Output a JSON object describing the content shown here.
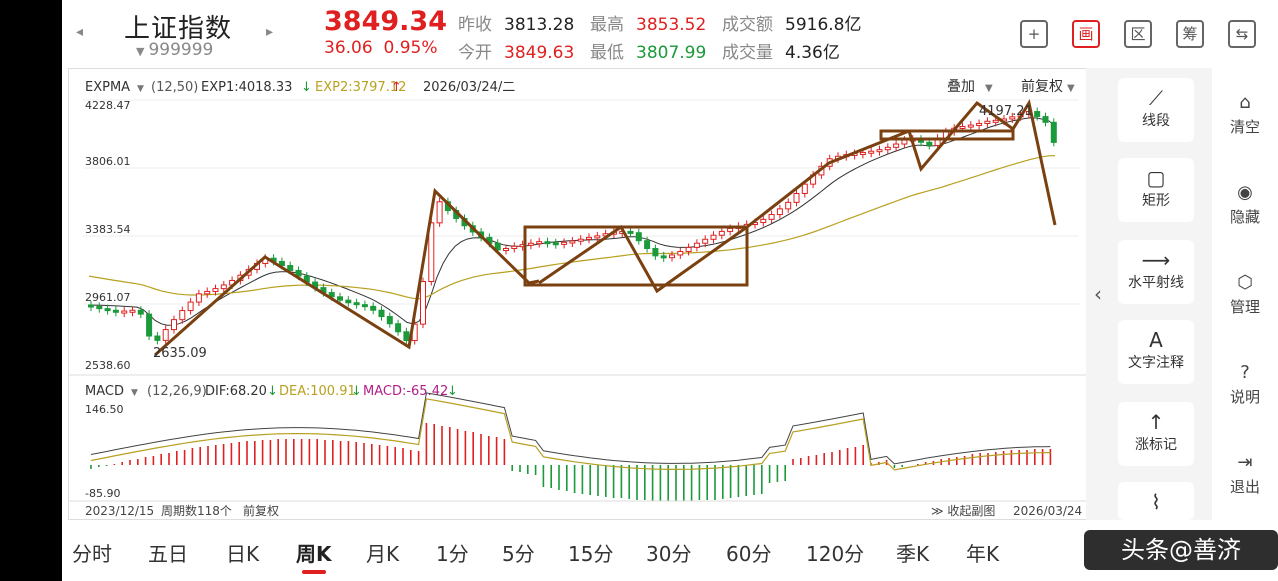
{
  "header": {
    "name": "上证指数",
    "code": "999999",
    "price": "3849.34",
    "change": "36.06",
    "change_pct": "0.95%",
    "quotes": {
      "prev_close_label": "昨收",
      "prev_close": "3813.28",
      "open_label": "今开",
      "open": "3849.63",
      "high_label": "最高",
      "high": "3853.52",
      "low_label": "最低",
      "low": "3807.99",
      "amount_label": "成交额",
      "amount": "5916.8亿",
      "volume_label": "成交量",
      "volume": "4.36亿"
    },
    "tools": [
      {
        "name": "add",
        "glyph": "+"
      },
      {
        "name": "draw",
        "glyph": "画"
      },
      {
        "name": "zone",
        "glyph": "区"
      },
      {
        "name": "chip",
        "glyph": "筹"
      },
      {
        "name": "device",
        "glyph": "⇆"
      }
    ]
  },
  "main_chart": {
    "indicator": "EXPMA",
    "params": "(12,50)",
    "exp1_label": "EXP1:4018.33",
    "exp2_label": "EXP2:3797.12",
    "date": "2026/03/24/二",
    "overlay_label": "叠加",
    "adjust_label": "前复权",
    "y_ticks": [
      "4228.47",
      "3806.01",
      "3383.54",
      "2961.07",
      "2538.60"
    ],
    "low_label": "2635.09",
    "high_label": "4197.21"
  },
  "macd_chart": {
    "indicator": "MACD",
    "params": "(12,26,9)",
    "dif_label": "DIF:68.20",
    "dea_label": "DEA:100.91",
    "macd_label": "MACD:-65.42",
    "y_ticks": [
      "146.50",
      "-85.90"
    ]
  },
  "footer": {
    "start_date": "2023/12/15",
    "period_count": "周期数118个",
    "adjust": "前复权",
    "collapse_label": "收起副图",
    "end_date": "2026/03/24"
  },
  "draw_panel": {
    "items": [
      {
        "label": "线段",
        "glyph": "⟋"
      },
      {
        "label": "矩形",
        "glyph": "▢"
      },
      {
        "label": "水平射线",
        "glyph": "⟶"
      },
      {
        "label": "文字注释",
        "glyph": "A"
      },
      {
        "label": "涨标记",
        "glyph": "↑"
      },
      {
        "label": "",
        "glyph": "⌇"
      }
    ]
  },
  "side_panel": {
    "items": [
      {
        "label": "清空",
        "glyph": "⌂"
      },
      {
        "label": "隐藏",
        "glyph": "◉"
      },
      {
        "label": "管理",
        "glyph": "⬡"
      },
      {
        "label": "说明",
        "glyph": "?"
      },
      {
        "label": "退出",
        "glyph": "⇥"
      }
    ]
  },
  "tabs": [
    "分时",
    "五日",
    "日K",
    "周K",
    "月K",
    "1分",
    "5分",
    "15分",
    "30分",
    "60分",
    "120分",
    "季K",
    "年K"
  ],
  "active_tab": "周K",
  "watermark": "头条@善济",
  "colors": {
    "up": "#e02020",
    "down": "#1a9a3a",
    "annotation": "#7a4010",
    "exp1": "#333333",
    "exp2": "#b8a020"
  }
}
